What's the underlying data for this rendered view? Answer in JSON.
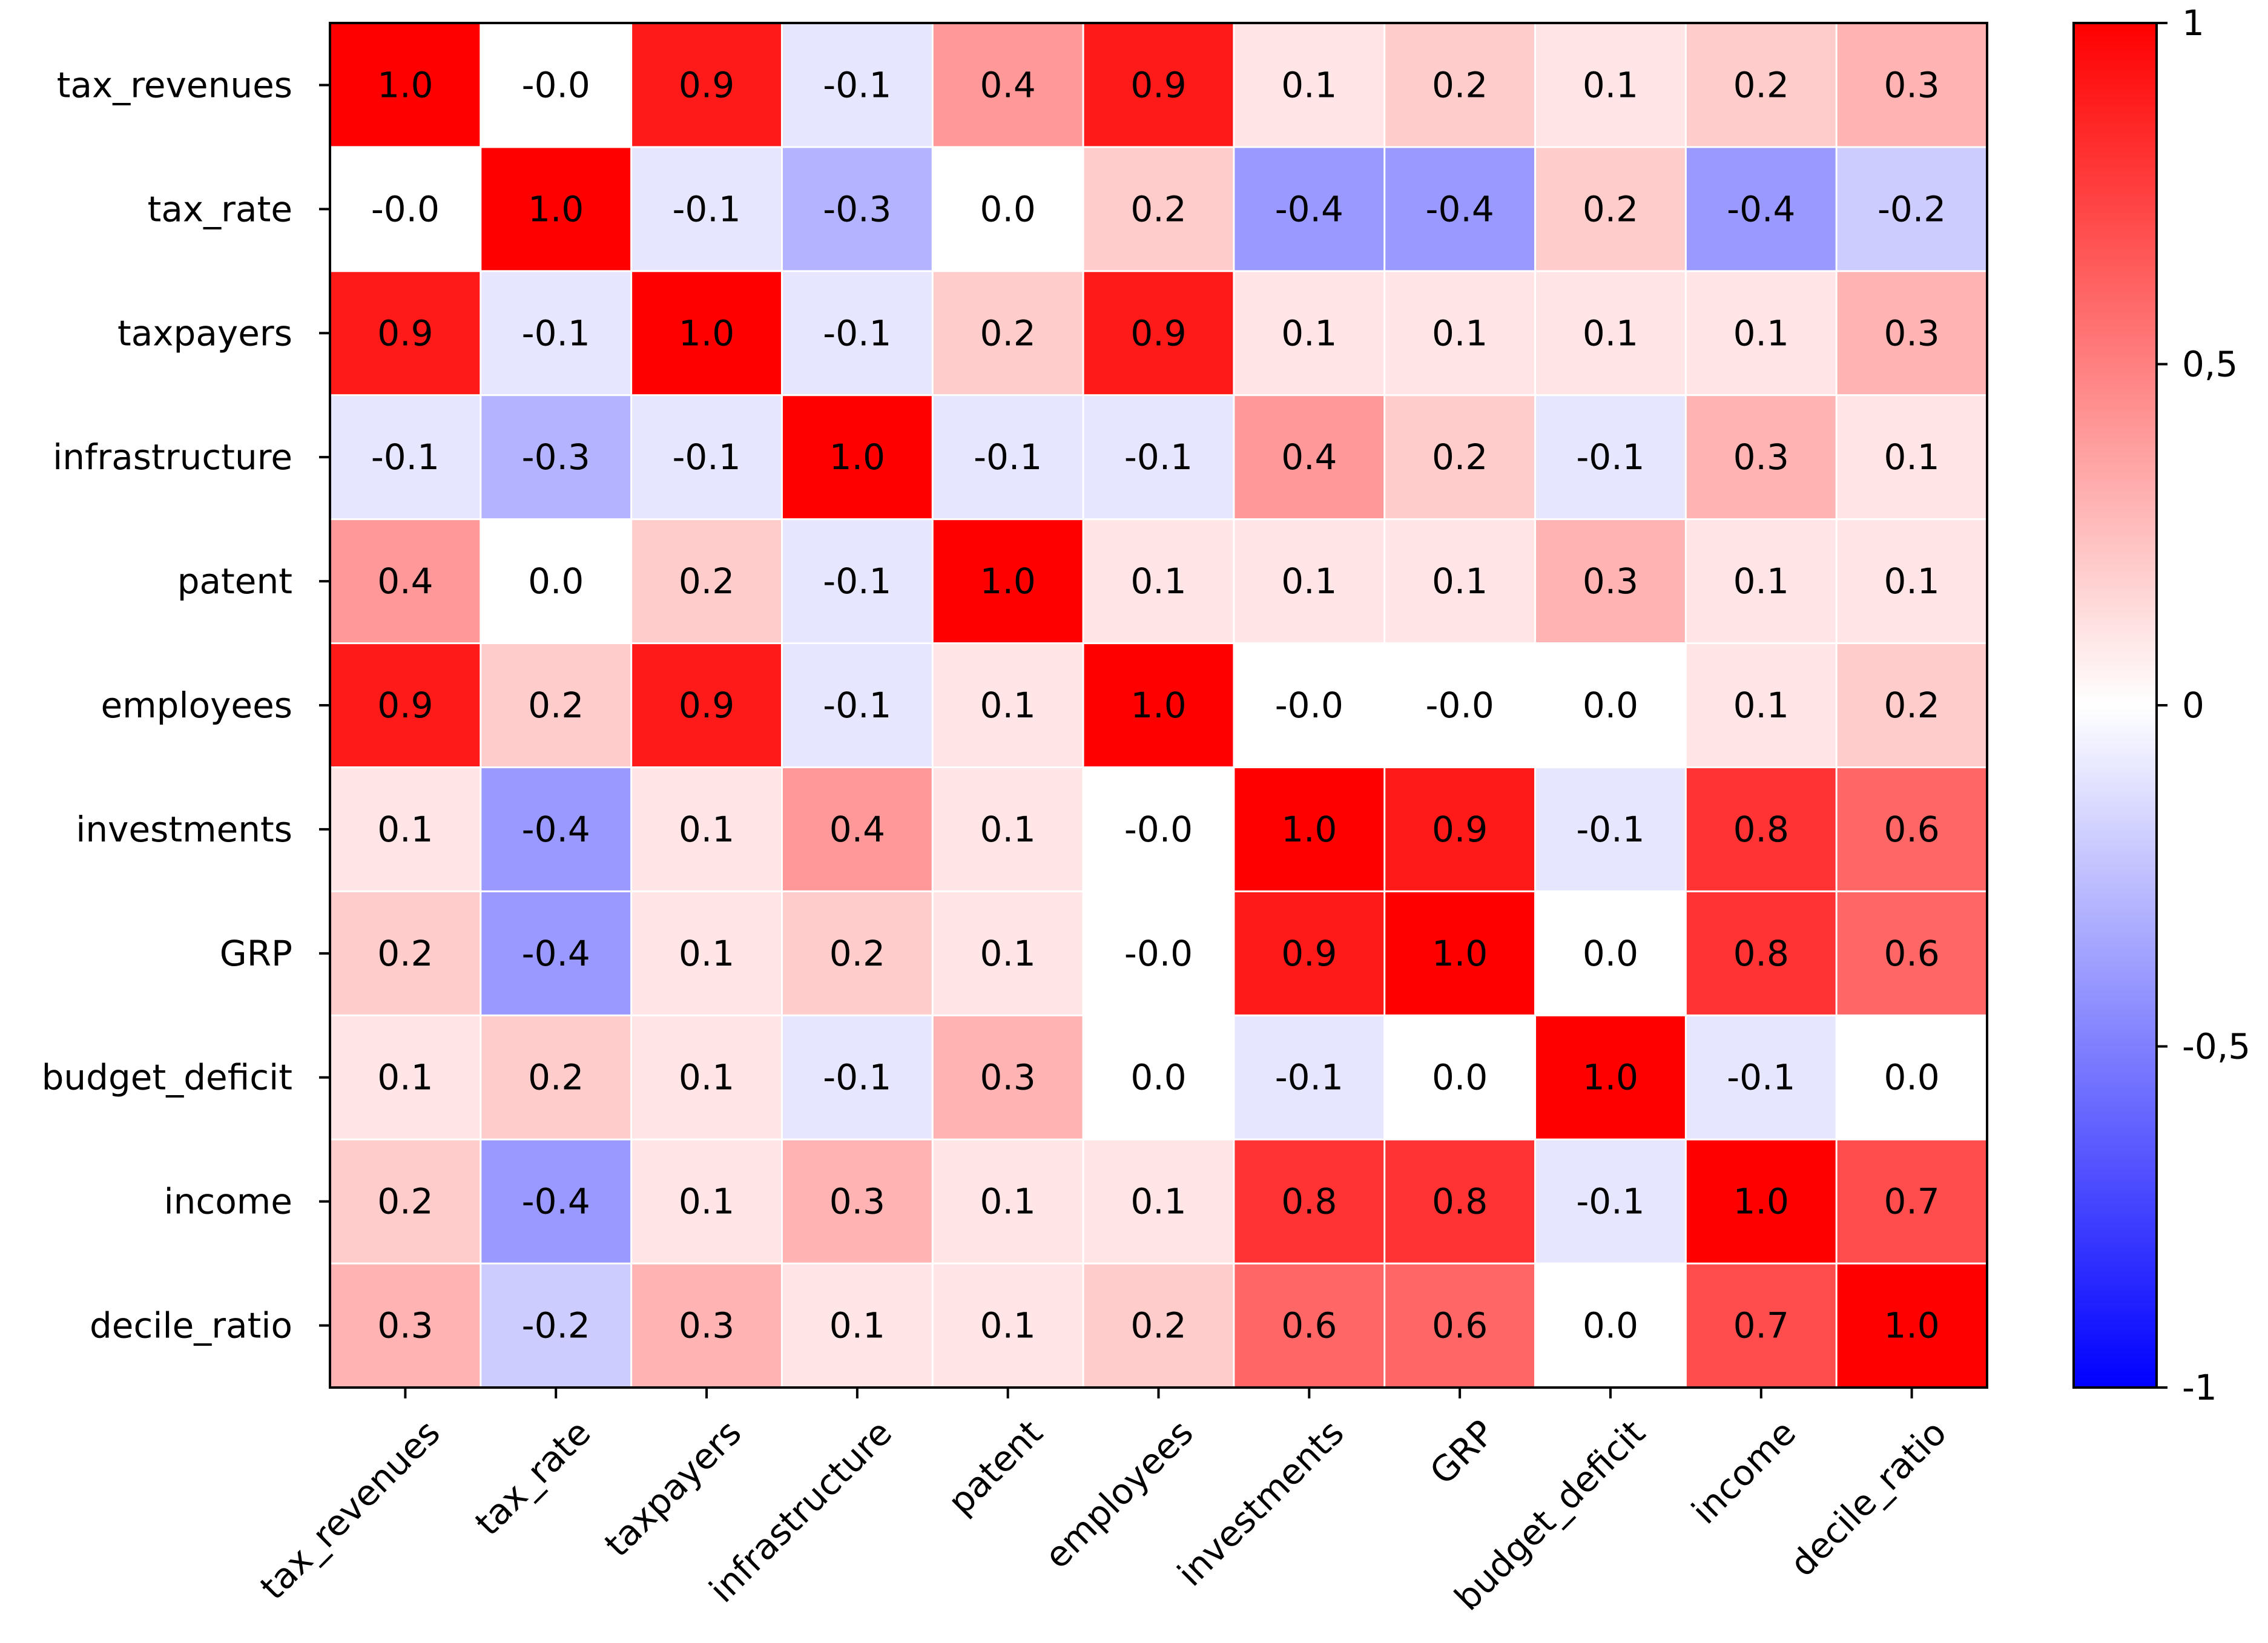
{
  "chart_data": {
    "type": "heatmap",
    "title": "",
    "xlabel": "",
    "ylabel": "",
    "rows": [
      "tax_revenues",
      "tax_rate",
      "taxpayers",
      "infrastructure",
      "patent",
      "employees",
      "investments",
      "GRP",
      "budget_deficit",
      "income",
      "decile_ratio"
    ],
    "columns": [
      "tax_revenues",
      "tax_rate",
      "taxpayers",
      "infrastructure",
      "patent",
      "employees",
      "investments",
      "GRP",
      "budget_deficit",
      "income",
      "decile_ratio"
    ],
    "values": [
      [
        1.0,
        -0.0,
        0.9,
        -0.1,
        0.4,
        0.9,
        0.1,
        0.2,
        0.1,
        0.2,
        0.3
      ],
      [
        -0.0,
        1.0,
        -0.1,
        -0.3,
        0.0,
        0.2,
        -0.4,
        -0.4,
        0.2,
        -0.4,
        -0.2
      ],
      [
        0.9,
        -0.1,
        1.0,
        -0.1,
        0.2,
        0.9,
        0.1,
        0.1,
        0.1,
        0.1,
        0.3
      ],
      [
        -0.1,
        -0.3,
        -0.1,
        1.0,
        -0.1,
        -0.1,
        0.4,
        0.2,
        -0.1,
        0.3,
        0.1
      ],
      [
        0.4,
        0.0,
        0.2,
        -0.1,
        1.0,
        0.1,
        0.1,
        0.1,
        0.3,
        0.1,
        0.1
      ],
      [
        0.9,
        0.2,
        0.9,
        -0.1,
        0.1,
        1.0,
        -0.0,
        -0.0,
        0.0,
        0.1,
        0.2
      ],
      [
        0.1,
        -0.4,
        0.1,
        0.4,
        0.1,
        -0.0,
        1.0,
        0.9,
        -0.1,
        0.8,
        0.6
      ],
      [
        0.2,
        -0.4,
        0.1,
        0.2,
        0.1,
        -0.0,
        0.9,
        1.0,
        0.0,
        0.8,
        0.6
      ],
      [
        0.1,
        0.2,
        0.1,
        -0.1,
        0.3,
        0.0,
        -0.1,
        0.0,
        1.0,
        -0.1,
        0.0
      ],
      [
        0.2,
        -0.4,
        0.1,
        0.3,
        0.1,
        0.1,
        0.8,
        0.8,
        -0.1,
        1.0,
        0.7
      ],
      [
        0.3,
        -0.2,
        0.3,
        0.1,
        0.1,
        0.2,
        0.6,
        0.6,
        0.0,
        0.7,
        1.0
      ]
    ],
    "cell_labels": [
      [
        "1.0",
        "-0.0",
        "0.9",
        "-0.1",
        "0.4",
        "0.9",
        "0.1",
        "0.2",
        "0.1",
        "0.2",
        "0.3"
      ],
      [
        "-0.0",
        "1.0",
        "-0.1",
        "-0.3",
        "0.0",
        "0.2",
        "-0.4",
        "-0.4",
        "0.2",
        "-0.4",
        "-0.2"
      ],
      [
        "0.9",
        "-0.1",
        "1.0",
        "-0.1",
        "0.2",
        "0.9",
        "0.1",
        "0.1",
        "0.1",
        "0.1",
        "0.3"
      ],
      [
        "-0.1",
        "-0.3",
        "-0.1",
        "1.0",
        "-0.1",
        "-0.1",
        "0.4",
        "0.2",
        "-0.1",
        "0.3",
        "0.1"
      ],
      [
        "0.4",
        "0.0",
        "0.2",
        "-0.1",
        "1.0",
        "0.1",
        "0.1",
        "0.1",
        "0.3",
        "0.1",
        "0.1"
      ],
      [
        "0.9",
        "0.2",
        "0.9",
        "-0.1",
        "0.1",
        "1.0",
        "-0.0",
        "-0.0",
        "0.0",
        "0.1",
        "0.2"
      ],
      [
        "0.1",
        "-0.4",
        "0.1",
        "0.4",
        "0.1",
        "-0.0",
        "1.0",
        "0.9",
        "-0.1",
        "0.8",
        "0.6"
      ],
      [
        "0.2",
        "-0.4",
        "0.1",
        "0.2",
        "0.1",
        "-0.0",
        "0.9",
        "1.0",
        "0.0",
        "0.8",
        "0.6"
      ],
      [
        "0.1",
        "0.2",
        "0.1",
        "-0.1",
        "0.3",
        "0.0",
        "-0.1",
        "0.0",
        "1.0",
        "-0.1",
        "0.0"
      ],
      [
        "0.2",
        "-0.4",
        "0.1",
        "0.3",
        "0.1",
        "0.1",
        "0.8",
        "0.8",
        "-0.1",
        "1.0",
        "0.7"
      ],
      [
        "0.3",
        "-0.2",
        "0.3",
        "0.1",
        "0.1",
        "0.2",
        "0.6",
        "0.6",
        "0.0",
        "0.7",
        "1.0"
      ]
    ],
    "color_scale": {
      "min": -1,
      "max": 1,
      "low_color": "#0000ff",
      "mid_color": "#ffffff",
      "high_color": "#ff0000"
    },
    "colorbar": {
      "ticks": [
        1,
        0.5,
        0,
        -0.5,
        -1
      ],
      "tick_labels": [
        "1",
        "0,5",
        "0",
        "-0,5",
        "-1"
      ]
    },
    "grid_color": "#ffffff",
    "frame_color": "#000000"
  }
}
